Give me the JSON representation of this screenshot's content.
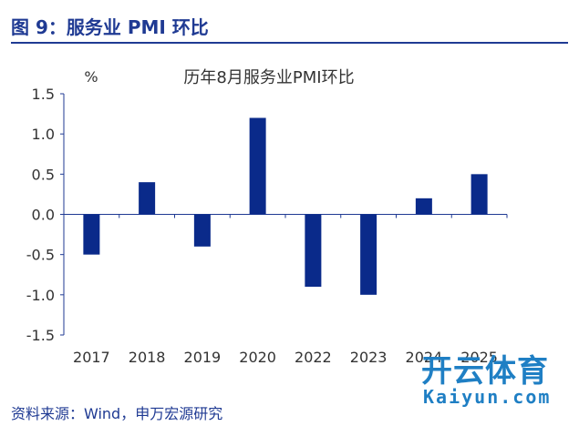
{
  "figure": {
    "title": "图 9：服务业 PMI 环比",
    "source": "资料来源：Wind，申万宏源研究"
  },
  "colors": {
    "bar": "#0a2a8a",
    "title": "#1f3a93",
    "axis": "#1f3a93",
    "watermark": "#1f7fc4"
  },
  "watermark": {
    "brand": "开云体育",
    "url": "Kaiyun.com"
  },
  "chart_data": {
    "type": "bar",
    "title": "历年8月服务业PMI环比",
    "ylabel": "%",
    "xlabel": "",
    "categories": [
      "2017",
      "2018",
      "2019",
      "2020",
      "2022",
      "2023",
      "2024",
      "2025"
    ],
    "values": [
      -0.5,
      0.4,
      -0.4,
      1.2,
      -0.9,
      -1.0,
      0.2,
      0.5
    ],
    "ylim": [
      -1.5,
      1.5
    ],
    "yticks": [
      "1.5",
      "1.0",
      "0.5",
      "0.0",
      "-0.5",
      "-1.0",
      "-1.5"
    ],
    "grid": false,
    "legend": "none"
  }
}
